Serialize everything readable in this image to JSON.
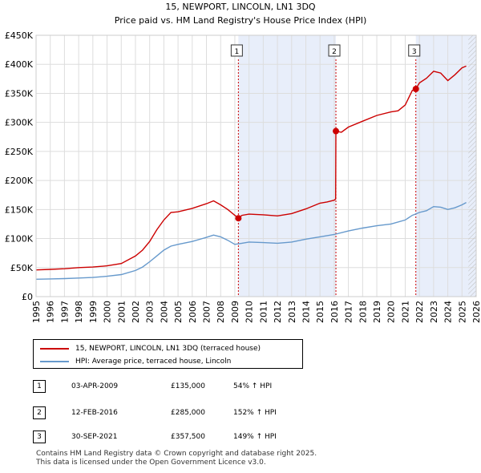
{
  "chart_data": {
    "type": "line",
    "title": "15, NEWPORT, LINCOLN, LN1 3DQ",
    "subtitle": "Price paid vs. HM Land Registry's House Price Index (HPI)",
    "xlim": [
      1995,
      2026
    ],
    "ylim": [
      0,
      450000
    ],
    "x_ticks": [
      1995,
      1996,
      1997,
      1998,
      1999,
      2000,
      2001,
      2002,
      2003,
      2004,
      2005,
      2006,
      2007,
      2008,
      2009,
      2010,
      2011,
      2012,
      2013,
      2014,
      2015,
      2016,
      2017,
      2018,
      2019,
      2020,
      2021,
      2022,
      2023,
      2024,
      2025,
      2026
    ],
    "y_ticks": [
      {
        "value": 0,
        "label": "£0"
      },
      {
        "value": 50000,
        "label": "£50K"
      },
      {
        "value": 100000,
        "label": "£100K"
      },
      {
        "value": 150000,
        "label": "£150K"
      },
      {
        "value": 200000,
        "label": "£200K"
      },
      {
        "value": 250000,
        "label": "£250K"
      },
      {
        "value": 300000,
        "label": "£300K"
      },
      {
        "value": 350000,
        "label": "£350K"
      },
      {
        "value": 400000,
        "label": "£400K"
      },
      {
        "value": 450000,
        "label": "£450K"
      }
    ],
    "shaded_regions": [
      [
        2009.25,
        2016.12
      ],
      [
        2021.75,
        2026
      ]
    ],
    "series": [
      {
        "name": "15, NEWPORT, LINCOLN, LN1 3DQ (terraced house)",
        "color": "#cc0000",
        "x": [
          1995,
          1996,
          1997,
          1998,
          1999,
          2000,
          2001,
          2002,
          2002.5,
          2003,
          2003.5,
          2004,
          2004.5,
          2005,
          2006,
          2007,
          2007.5,
          2008,
          2008.5,
          2009,
          2009.25,
          2009.5,
          2010,
          2011,
          2012,
          2013,
          2014,
          2015,
          2015.5,
          2016.0,
          2016.1,
          2016.12,
          2016.5,
          2017,
          2018,
          2019,
          2020,
          2020.5,
          2021,
          2021.5,
          2021.75,
          2022,
          2022.5,
          2023,
          2023.5,
          2024,
          2024.5,
          2025,
          2025.3
        ],
        "values": [
          46000,
          47000,
          48000,
          50000,
          51000,
          53000,
          57000,
          70000,
          80000,
          95000,
          115000,
          132000,
          145000,
          146000,
          152000,
          160000,
          165000,
          158000,
          150000,
          140000,
          135000,
          140000,
          142000,
          141000,
          139000,
          143000,
          151000,
          161000,
          163000,
          166000,
          168000,
          285000,
          283000,
          292000,
          302000,
          312000,
          318000,
          320000,
          330000,
          355000,
          357500,
          368000,
          376000,
          388000,
          385000,
          372000,
          382000,
          394000,
          397000
        ]
      },
      {
        "name": "HPI: Average price, terraced house, Lincoln",
        "color": "#6699cc",
        "x": [
          1995,
          1996,
          1997,
          1998,
          1999,
          2000,
          2001,
          2002,
          2002.5,
          2003,
          2003.5,
          2004,
          2004.5,
          2005,
          2006,
          2007,
          2007.5,
          2008,
          2008.5,
          2009,
          2009.5,
          2010,
          2011,
          2012,
          2013,
          2014,
          2015,
          2016,
          2017,
          2018,
          2019,
          2020,
          2021,
          2021.5,
          2022,
          2022.5,
          2023,
          2023.5,
          2024,
          2024.5,
          2025,
          2025.3
        ],
        "values": [
          30000,
          30500,
          31000,
          32000,
          33000,
          35000,
          38000,
          45000,
          51000,
          60000,
          70000,
          80000,
          87000,
          90000,
          95000,
          102000,
          106000,
          103000,
          97000,
          90000,
          92000,
          94000,
          93000,
          92000,
          94000,
          99000,
          103000,
          107000,
          113000,
          118000,
          122000,
          125000,
          132000,
          140000,
          145000,
          148000,
          155000,
          154000,
          150000,
          153000,
          158000,
          162000
        ]
      }
    ],
    "sales": [
      {
        "num": "1",
        "x": 2009.25,
        "price": 135000,
        "date": "03-APR-2009",
        "price_label": "£135,000",
        "hpi_label": "54% ↑ HPI"
      },
      {
        "num": "2",
        "x": 2016.12,
        "price": 285000,
        "date": "12-FEB-2016",
        "price_label": "£285,000",
        "hpi_label": "152% ↑ HPI"
      },
      {
        "num": "3",
        "x": 2021.75,
        "price": 357500,
        "date": "30-SEP-2021",
        "price_label": "£357,500",
        "hpi_label": "149% ↑ HPI"
      }
    ]
  },
  "legend": {
    "property_label": "15, NEWPORT, LINCOLN, LN1 3DQ (terraced house)",
    "hpi_label": "HPI: Average price, terraced house, Lincoln",
    "property_color": "#cc0000",
    "hpi_color": "#6699cc"
  },
  "footer": {
    "line1": "Contains HM Land Registry data © Crown copyright and database right 2025.",
    "line2": "This data is licensed under the Open Government Licence v3.0."
  }
}
